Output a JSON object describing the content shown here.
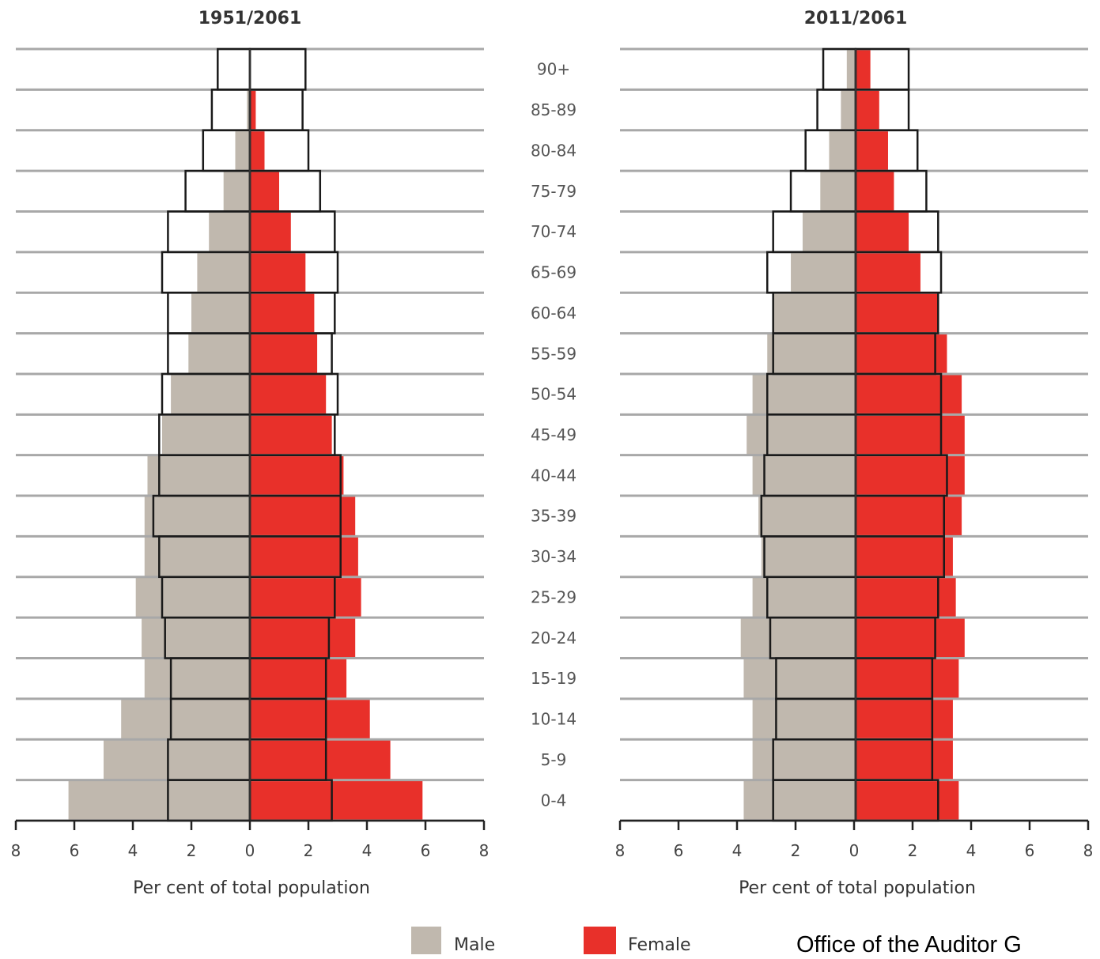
{
  "chart_data": [
    {
      "type": "population-pyramid",
      "title": "1951/2061",
      "xlabel": "Per cent of total population",
      "xlim": [
        -8,
        8
      ],
      "x_ticks": [
        "8",
        "6",
        "4",
        "2",
        "0",
        "2",
        "4",
        "6",
        "8"
      ],
      "categories": [
        "0-4",
        "5-9",
        "10-14",
        "15-19",
        "20-24",
        "25-29",
        "30-34",
        "35-39",
        "40-44",
        "45-49",
        "50-54",
        "55-59",
        "60-64",
        "65-69",
        "70-74",
        "75-79",
        "80-84",
        "85-89",
        "90+"
      ],
      "series": [
        {
          "name": "Male",
          "values": [
            6.2,
            5.0,
            4.4,
            3.6,
            3.7,
            3.9,
            3.6,
            3.6,
            3.5,
            3.0,
            2.7,
            2.1,
            2.0,
            1.8,
            1.4,
            0.9,
            0.5,
            0.1,
            0.0
          ]
        },
        {
          "name": "Female",
          "values": [
            5.9,
            4.8,
            4.1,
            3.3,
            3.6,
            3.8,
            3.7,
            3.6,
            3.2,
            2.8,
            2.6,
            2.3,
            2.2,
            1.9,
            1.4,
            1.0,
            0.5,
            0.2,
            0.0
          ]
        },
        {
          "name": "2061 male outline",
          "values": [
            2.8,
            2.8,
            2.7,
            2.7,
            2.9,
            3.0,
            3.1,
            3.3,
            3.1,
            3.1,
            3.0,
            2.8,
            2.8,
            3.0,
            2.8,
            2.2,
            1.6,
            1.3,
            1.1
          ]
        },
        {
          "name": "2061 female outline",
          "values": [
            2.8,
            2.6,
            2.6,
            2.6,
            2.7,
            2.9,
            3.1,
            3.1,
            3.1,
            2.9,
            3.0,
            2.8,
            2.9,
            3.0,
            2.9,
            2.4,
            2.0,
            1.8,
            1.9
          ]
        }
      ]
    },
    {
      "type": "population-pyramid",
      "title": "2011/2061",
      "xlabel": "Per cent of total population",
      "xlim": [
        -8,
        8
      ],
      "x_ticks": [
        "8",
        "6",
        "4",
        "2",
        "0",
        "2",
        "4",
        "6",
        "8"
      ],
      "categories": [
        "0-4",
        "5-9",
        "10-14",
        "15-19",
        "20-24",
        "25-29",
        "30-34",
        "35-39",
        "40-44",
        "45-49",
        "50-54",
        "55-59",
        "60-64",
        "65-69",
        "70-74",
        "75-79",
        "80-84",
        "85-89",
        "90+"
      ],
      "series": [
        {
          "name": "Male",
          "values": [
            3.8,
            3.5,
            3.5,
            3.8,
            3.9,
            3.5,
            3.2,
            3.3,
            3.5,
            3.7,
            3.5,
            3.0,
            2.8,
            2.2,
            1.8,
            1.2,
            0.9,
            0.5,
            0.3
          ]
        },
        {
          "name": "Female",
          "values": [
            3.5,
            3.3,
            3.3,
            3.5,
            3.7,
            3.4,
            3.3,
            3.6,
            3.7,
            3.7,
            3.6,
            3.1,
            2.8,
            2.2,
            1.8,
            1.3,
            1.1,
            0.8,
            0.5
          ]
        },
        {
          "name": "2061 male outline",
          "values": [
            2.8,
            2.8,
            2.7,
            2.7,
            2.9,
            3.0,
            3.1,
            3.2,
            3.1,
            3.0,
            3.0,
            2.8,
            2.8,
            3.0,
            2.8,
            2.2,
            1.7,
            1.3,
            1.1
          ]
        },
        {
          "name": "2061 female outline",
          "values": [
            2.8,
            2.6,
            2.6,
            2.6,
            2.7,
            2.8,
            3.0,
            3.0,
            3.1,
            2.9,
            2.9,
            2.7,
            2.8,
            2.9,
            2.8,
            2.4,
            2.1,
            1.8,
            1.8
          ]
        }
      ]
    }
  ],
  "legend": [
    {
      "label": "Male",
      "color": "#c0b8ae"
    },
    {
      "label": "Female",
      "color": "#e8302a"
    }
  ],
  "colors": {
    "male": "#c0b8ae",
    "female": "#e8302a",
    "gridline": "#a8a8a8",
    "outline": "#1a1a1a"
  },
  "credit": "Office of the Auditor G"
}
